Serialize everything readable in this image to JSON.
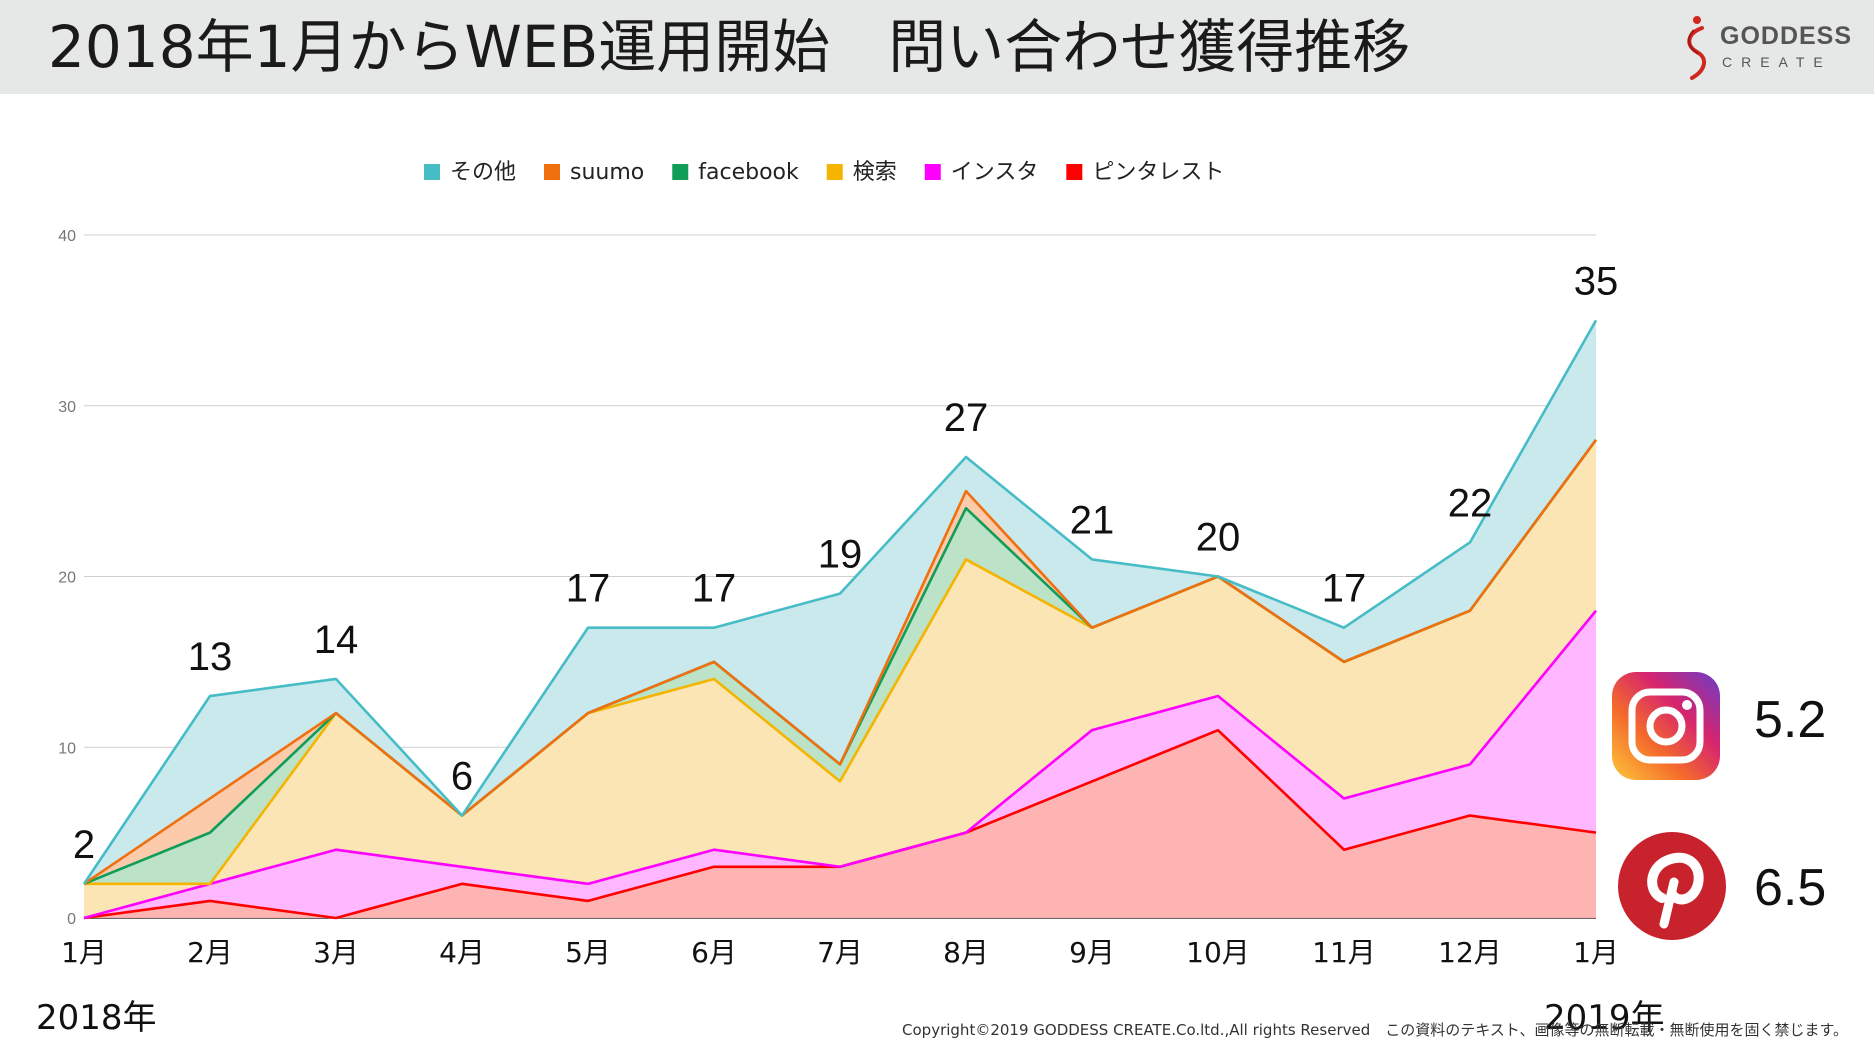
{
  "header": {
    "title": "2018年1月からWEB運用開始　問い合わせ獲得推移",
    "logo_main": "GODDESS",
    "logo_sub": "CREATE"
  },
  "chart_data": {
    "type": "area",
    "stacked": true,
    "categories": [
      "1月",
      "2月",
      "3月",
      "4月",
      "5月",
      "6月",
      "7月",
      "8月",
      "9月",
      "10月",
      "11月",
      "12月",
      "1月"
    ],
    "series": [
      {
        "name": "ピンタレスト",
        "color": "#ff0000",
        "fill": "#ffb0b0",
        "values": [
          0,
          1,
          0,
          2,
          1,
          3,
          3,
          5,
          8,
          11,
          4,
          6,
          5
        ]
      },
      {
        "name": "インスタ",
        "color": "#ff00ff",
        "fill": "#ffb3ff",
        "values": [
          0,
          1,
          4,
          1,
          1,
          1,
          0,
          0,
          3,
          2,
          3,
          3,
          13
        ]
      },
      {
        "name": "検索",
        "color": "#f4b400",
        "fill": "#fbe4b0",
        "values": [
          2,
          0,
          8,
          3,
          10,
          10,
          5,
          16,
          6,
          7,
          8,
          9,
          10
        ]
      },
      {
        "name": "facebook",
        "color": "#0f9d58",
        "fill": "#b8e0c4",
        "values": [
          0,
          3,
          0,
          0,
          0,
          1,
          1,
          3,
          0,
          0,
          0,
          0,
          0
        ]
      },
      {
        "name": "suumo",
        "color": "#f07010",
        "fill": "#fcc8a8",
        "values": [
          0,
          2,
          0,
          0,
          0,
          0,
          0,
          1,
          0,
          0,
          0,
          0,
          0
        ]
      },
      {
        "name": "その他",
        "color": "#46bdc6",
        "fill": "#c7e8ec",
        "values": [
          0,
          6,
          2,
          0,
          5,
          2,
          10,
          2,
          4,
          0,
          2,
          4,
          7
        ]
      }
    ],
    "legend_order": [
      "その他",
      "suumo",
      "facebook",
      "検索",
      "インスタ",
      "ピンタレスト"
    ],
    "legend_position": "top",
    "totals": [
      2,
      13,
      14,
      6,
      17,
      17,
      19,
      27,
      21,
      20,
      17,
      22,
      35
    ],
    "ylim": [
      0,
      40
    ],
    "yticks": [
      0,
      10,
      20,
      30,
      40
    ],
    "grid": true
  },
  "years": {
    "start": "2018年",
    "end": "2019年"
  },
  "badges": {
    "instagram_value": "5.2",
    "pinterest_value": "6.5"
  },
  "footer": {
    "copyright": "Copyright©2019 GODDESS CREATE.Co.ltd.,All rights Reserved　この資料のテキスト、画像等の無断転載・無断使用を固く禁じます。"
  }
}
